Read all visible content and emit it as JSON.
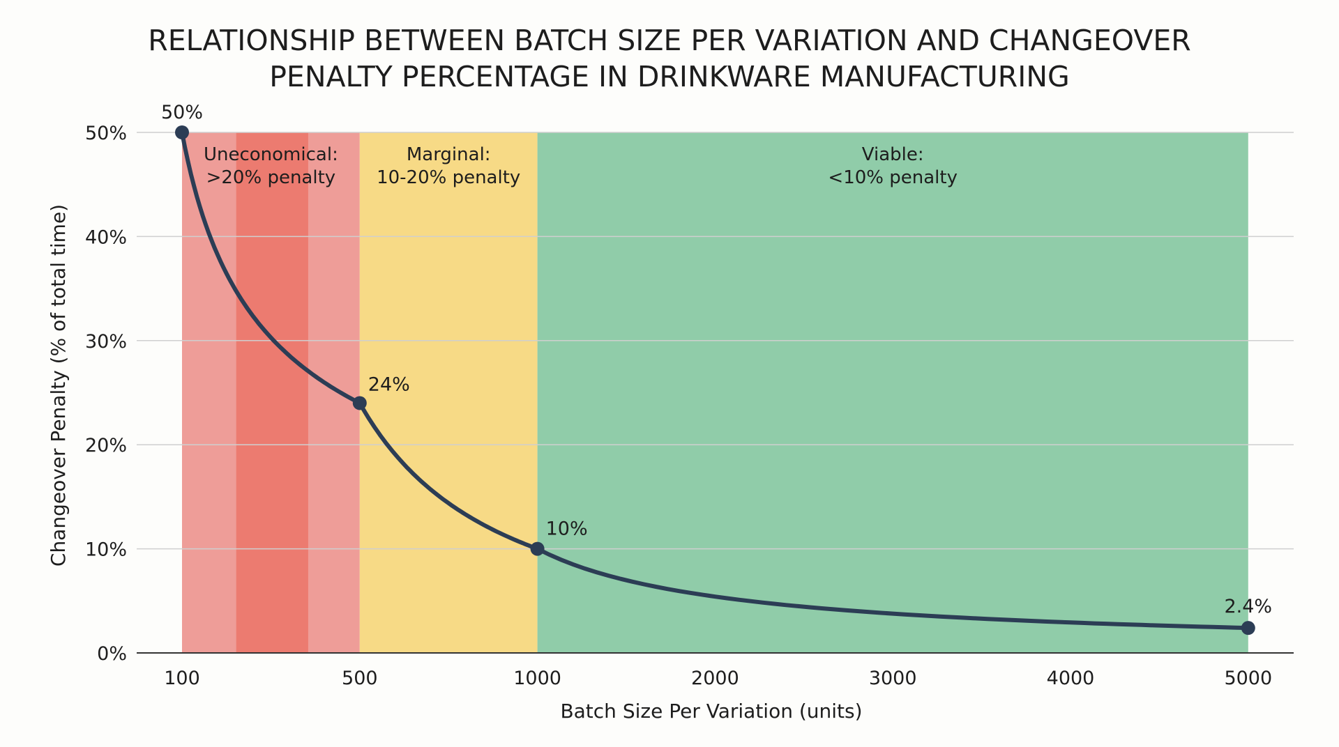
{
  "chart_data": {
    "type": "line",
    "title": [
      "RELATIONSHIP BETWEEN BATCH SIZE PER VARIATION AND CHANGEOVER",
      "PENALTY PERCENTAGE IN DRINKWARE MANUFACTURING"
    ],
    "xlabel": "Batch Size Per Variation (units)",
    "ylabel": "Changeover Penalty (% of total time)",
    "x_ticks": [
      100,
      500,
      1000,
      2000,
      3000,
      4000,
      5000
    ],
    "x_tick_labels": [
      "100",
      "500",
      "1000",
      "2000",
      "3000",
      "4000",
      "5000"
    ],
    "y_ticks": [
      0,
      10,
      20,
      30,
      40,
      50
    ],
    "y_tick_labels": [
      "0%",
      "10%",
      "20%",
      "30%",
      "40%",
      "50%"
    ],
    "ylim": [
      0,
      50
    ],
    "grid": "horizontal",
    "points": [
      {
        "x": 100,
        "y": 50,
        "label": "50%"
      },
      {
        "x": 500,
        "y": 24,
        "label": "24%"
      },
      {
        "x": 1000,
        "y": 10,
        "label": "10%"
      },
      {
        "x": 5000,
        "y": 2.4,
        "label": "2.4%"
      }
    ],
    "zones": [
      {
        "name": "uneconomical",
        "from": 100,
        "to": 500,
        "line1": "Uneconomical:",
        "line2": ">20% penalty",
        "color": "#ee9d98",
        "accent_color": "#ec7b70"
      },
      {
        "name": "marginal",
        "from": 500,
        "to": 1000,
        "line1": "Marginal:",
        "line2": "10-20% penalty",
        "color": "#f7da86"
      },
      {
        "name": "viable",
        "from": 1000,
        "to": 5000,
        "line1": "Viable:",
        "line2": "<10% penalty",
        "color": "#90cca9"
      }
    ],
    "line_color": "#2c3d55"
  }
}
